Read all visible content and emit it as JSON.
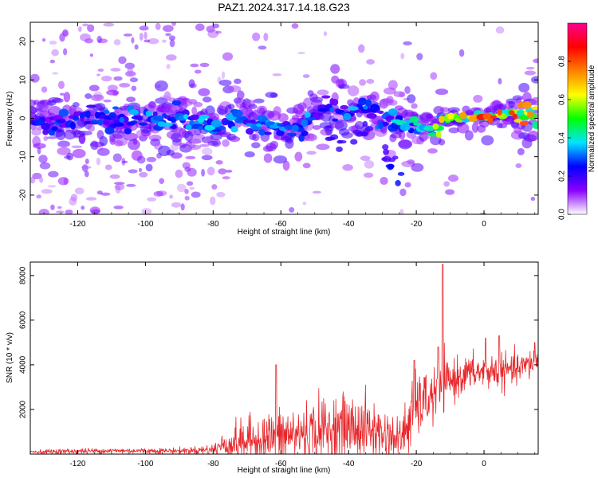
{
  "title": "PAZ1.2024.317.14.18.G23",
  "chart_data": [
    {
      "type": "heatmap",
      "xlabel": "Height of straight line (km)",
      "ylabel": "Frequency (Hz)",
      "xlim": [
        -134,
        16
      ],
      "ylim": [
        -25,
        25
      ],
      "x_ticks": [
        -120,
        -100,
        -80,
        -60,
        -40,
        -20,
        0
      ],
      "y_ticks": [
        -20,
        -10,
        0,
        10,
        20
      ],
      "colorbar": {
        "label": "Normalized spectral amplitude",
        "range": [
          0,
          1
        ],
        "ticks": [
          0.0,
          0.2,
          0.4,
          0.6,
          0.8
        ],
        "colors": [
          "#ffffff",
          "#8a00ff",
          "#0000ff",
          "#00e5ff",
          "#00ff00",
          "#ffff00",
          "#ff8000",
          "#ff0000",
          "#ff0090"
        ]
      },
      "ridge": {
        "x": [
          -134,
          -120,
          -100,
          -90,
          -80,
          -75,
          -70,
          -60,
          -55,
          -50,
          -45,
          -40,
          -35,
          -30,
          -25,
          -20,
          -15,
          -10,
          0,
          5,
          16
        ],
        "freq": [
          -1,
          -1,
          0,
          0,
          -2,
          -1,
          -1,
          -2,
          -3,
          1,
          3,
          1,
          2,
          0,
          -1,
          -2,
          -3,
          0,
          0,
          1,
          1
        ],
        "amplitude": [
          0.25,
          0.3,
          0.35,
          0.35,
          0.4,
          0.35,
          0.4,
          0.35,
          0.35,
          0.35,
          0.3,
          0.35,
          0.35,
          0.3,
          0.4,
          0.5,
          0.55,
          0.75,
          0.85,
          0.85,
          0.8
        ]
      }
    },
    {
      "type": "line",
      "xlabel": "Height of straight line (km)",
      "ylabel": "SNR (10 * v/v)",
      "xlim": [
        -134,
        16
      ],
      "ylim": [
        0,
        8600
      ],
      "x_ticks": [
        -120,
        -100,
        -80,
        -60,
        -40,
        -20,
        0
      ],
      "y_ticks": [
        2000,
        4000,
        6000,
        8000
      ],
      "series": [
        {
          "color": "#e8262a",
          "x": [
            -134,
            -120,
            -110,
            -100,
            -90,
            -85,
            -80,
            -78,
            -75,
            -70,
            -65,
            -60,
            -55,
            -50,
            -45,
            -40,
            -35,
            -30,
            -25,
            -22,
            -20,
            -18,
            -15,
            -12,
            -10,
            -5,
            0,
            5,
            10,
            16
          ],
          "baseline": [
            100,
            130,
            150,
            150,
            150,
            170,
            200,
            350,
            450,
            600,
            700,
            800,
            900,
            1000,
            1100,
            1200,
            1150,
            900,
            600,
            1500,
            2100,
            2300,
            2600,
            3000,
            3300,
            3600,
            3700,
            3700,
            3800,
            4200
          ],
          "spread": [
            80,
            120,
            110,
            110,
            120,
            150,
            250,
            400,
            700,
            900,
            1000,
            1100,
            1200,
            1300,
            1400,
            1400,
            1300,
            1100,
            900,
            1400,
            1300,
            1200,
            1100,
            1000,
            900,
            700,
            700,
            700,
            600,
            600
          ],
          "peaks": [
            {
              "x": -12.2,
              "y": 8500
            },
            {
              "x": -61.4,
              "y": 4000
            },
            {
              "x": -20.6,
              "y": 4200
            },
            {
              "x": -13.5,
              "y": 4800
            },
            {
              "x": 0.5,
              "y": 5200
            },
            {
              "x": 4.5,
              "y": 5300
            },
            {
              "x": 15.0,
              "y": 5000
            }
          ]
        }
      ]
    }
  ]
}
